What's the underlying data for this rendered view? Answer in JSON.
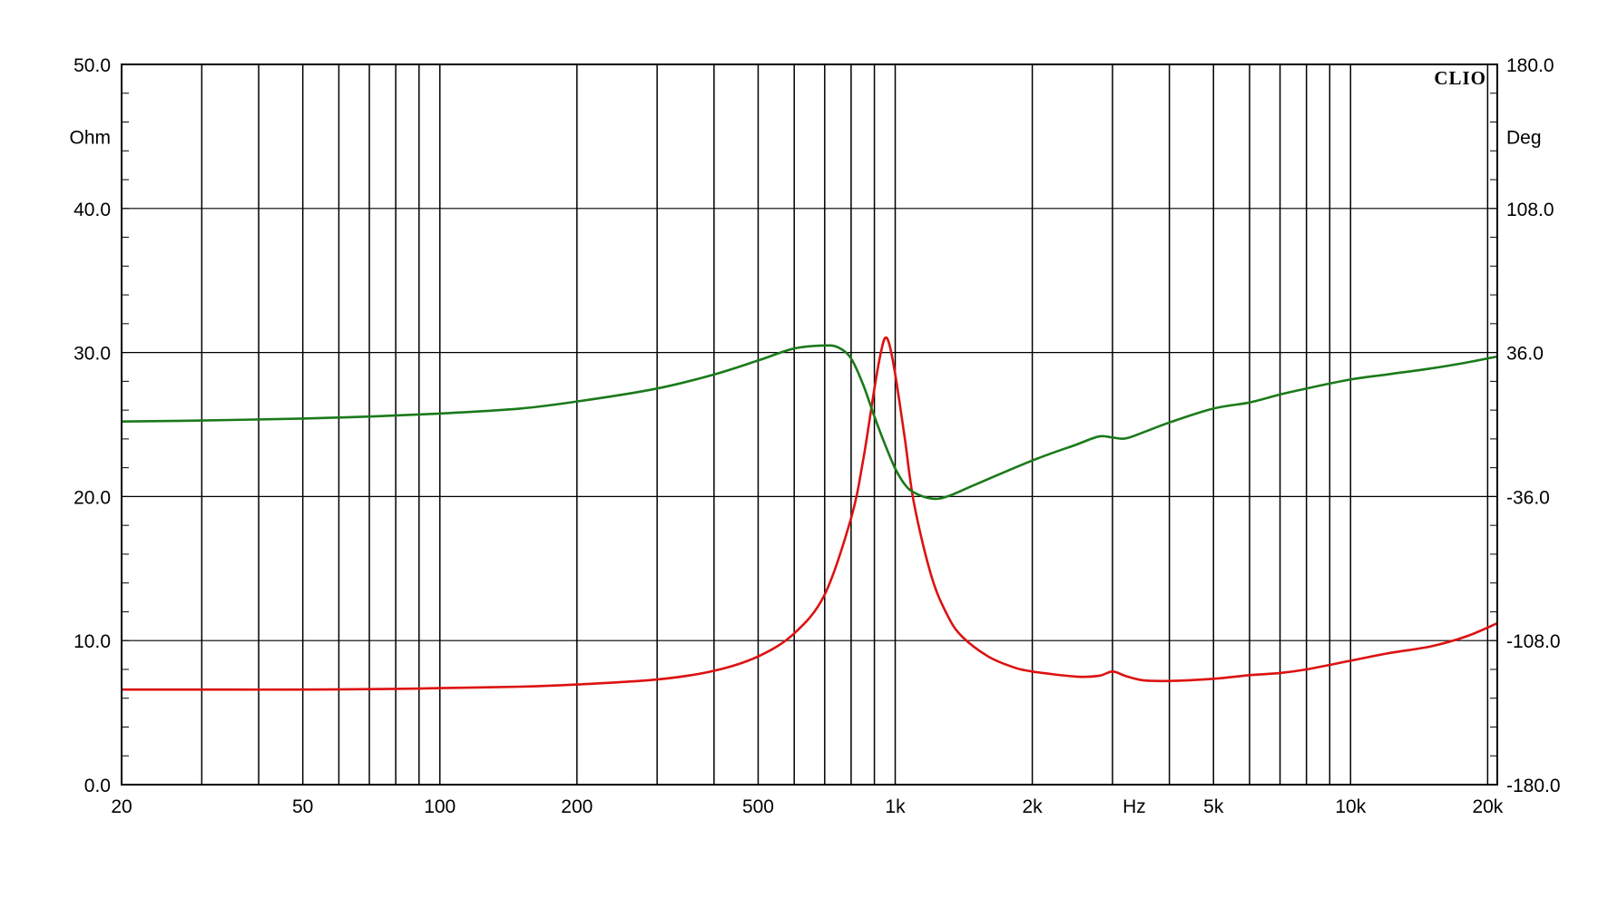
{
  "chart_data": {
    "type": "line",
    "brand": "CLIO",
    "x_scale": "log",
    "xlim": [
      20,
      21000
    ],
    "xlabel": "Hz",
    "x_ticks": [
      {
        "value": 20,
        "label": "20"
      },
      {
        "value": 50,
        "label": "50"
      },
      {
        "value": 100,
        "label": "100"
      },
      {
        "value": 200,
        "label": "200"
      },
      {
        "value": 500,
        "label": "500"
      },
      {
        "value": 1000,
        "label": "1k"
      },
      {
        "value": 2000,
        "label": "2k"
      },
      {
        "value": 5000,
        "label": "5k"
      },
      {
        "value": 10000,
        "label": "10k"
      },
      {
        "value": 20000,
        "label": "20k"
      }
    ],
    "x_grid": [
      20,
      30,
      40,
      50,
      60,
      70,
      80,
      90,
      100,
      200,
      300,
      400,
      500,
      600,
      700,
      800,
      900,
      1000,
      2000,
      3000,
      4000,
      5000,
      6000,
      7000,
      8000,
      9000,
      10000,
      20000
    ],
    "y_left": {
      "label": "Ohm",
      "lim": [
        0,
        50
      ],
      "ticks": [
        {
          "value": 0,
          "label": "0.0"
        },
        {
          "value": 10,
          "label": "10.0"
        },
        {
          "value": 20,
          "label": "20.0"
        },
        {
          "value": 30,
          "label": "30.0"
        },
        {
          "value": 40,
          "label": "40.0"
        },
        {
          "value": 50,
          "label": "50.0"
        }
      ]
    },
    "y_right": {
      "label": "Deg",
      "lim": [
        -180,
        180
      ],
      "ticks": [
        {
          "value": -180,
          "label": "-180.0"
        },
        {
          "value": -108,
          "label": "-108.0"
        },
        {
          "value": -36,
          "label": "-36.0"
        },
        {
          "value": 36,
          "label": "36.0"
        },
        {
          "value": 108,
          "label": "108.0"
        },
        {
          "value": 180,
          "label": "180.0"
        }
      ]
    },
    "grid": true,
    "series": [
      {
        "axis": "left",
        "color": "#dd1111",
        "points": [
          [
            20,
            6.6
          ],
          [
            30,
            6.6
          ],
          [
            50,
            6.6
          ],
          [
            80,
            6.65
          ],
          [
            100,
            6.7
          ],
          [
            150,
            6.8
          ],
          [
            200,
            6.95
          ],
          [
            300,
            7.3
          ],
          [
            400,
            7.9
          ],
          [
            500,
            8.9
          ],
          [
            600,
            10.5
          ],
          [
            700,
            13.2
          ],
          [
            800,
            18.5
          ],
          [
            850,
            22.5
          ],
          [
            900,
            27.5
          ],
          [
            930,
            30.0
          ],
          [
            950,
            31.0
          ],
          [
            970,
            30.6
          ],
          [
            1000,
            28.5
          ],
          [
            1050,
            24.0
          ],
          [
            1100,
            19.5
          ],
          [
            1200,
            14.5
          ],
          [
            1300,
            11.8
          ],
          [
            1400,
            10.3
          ],
          [
            1600,
            8.9
          ],
          [
            1800,
            8.2
          ],
          [
            2000,
            7.85
          ],
          [
            2500,
            7.5
          ],
          [
            2800,
            7.55
          ],
          [
            3000,
            7.85
          ],
          [
            3200,
            7.55
          ],
          [
            3500,
            7.25
          ],
          [
            4000,
            7.2
          ],
          [
            5000,
            7.35
          ],
          [
            6000,
            7.6
          ],
          [
            7000,
            7.75
          ],
          [
            8000,
            8.0
          ],
          [
            10000,
            8.6
          ],
          [
            12000,
            9.1
          ],
          [
            15000,
            9.6
          ],
          [
            18000,
            10.3
          ],
          [
            21000,
            11.2
          ]
        ]
      },
      {
        "axis": "right",
        "color": "#1a7a1a",
        "points": [
          [
            20,
            1.5
          ],
          [
            30,
            2.0
          ],
          [
            50,
            3.0
          ],
          [
            70,
            4.0
          ],
          [
            100,
            5.5
          ],
          [
            150,
            8.0
          ],
          [
            200,
            11.5
          ],
          [
            300,
            18.0
          ],
          [
            400,
            25.0
          ],
          [
            500,
            32.0
          ],
          [
            600,
            38.0
          ],
          [
            700,
            39.5
          ],
          [
            750,
            38.5
          ],
          [
            800,
            33.0
          ],
          [
            850,
            20.0
          ],
          [
            900,
            4.0
          ],
          [
            950,
            -10.0
          ],
          [
            1000,
            -22.0
          ],
          [
            1050,
            -30.0
          ],
          [
            1100,
            -34.0
          ],
          [
            1200,
            -37.0
          ],
          [
            1300,
            -36.0
          ],
          [
            1500,
            -30.0
          ],
          [
            2000,
            -18.0
          ],
          [
            2500,
            -10.0
          ],
          [
            2800,
            -6.0
          ],
          [
            3000,
            -6.5
          ],
          [
            3200,
            -7.0
          ],
          [
            3500,
            -4.0
          ],
          [
            4000,
            1.0
          ],
          [
            5000,
            8.0
          ],
          [
            6000,
            11.0
          ],
          [
            7000,
            15.0
          ],
          [
            8000,
            18.0
          ],
          [
            10000,
            22.5
          ],
          [
            12000,
            25.0
          ],
          [
            15000,
            28.0
          ],
          [
            18000,
            31.0
          ],
          [
            21000,
            34.0
          ]
        ]
      }
    ]
  }
}
